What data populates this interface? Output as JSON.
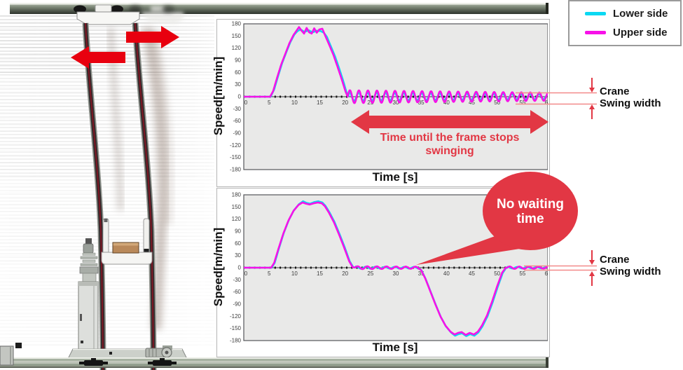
{
  "colors": {
    "machine_arrow_red": "#e8000f",
    "annotation_red": "#e23744",
    "annotation_line_red": "#f28a8a",
    "cyan": "#0ad8f2",
    "magenta": "#f711e8",
    "plot_bg": "#e9e9e8",
    "rail_green_dark": "#515a4e",
    "rail_green_light": "#9aa694"
  },
  "legend": {
    "items": [
      {
        "label": "Lower side",
        "swatch": "cyan"
      },
      {
        "label": "Upper side",
        "swatch": "magenta"
      }
    ]
  },
  "labels": {
    "swing_time": "Time until the frame stops swinging",
    "bubble_line1": "No waiting",
    "bubble_line2": "time",
    "crane": "Crane",
    "swing_width": "Swing width"
  },
  "chart_data": [
    {
      "type": "line",
      "title": "",
      "xlabel": "Time [s]",
      "ylabel": "Speed[m/min]",
      "xlim": [
        0,
        60
      ],
      "ylim": [
        -180,
        180
      ],
      "xticks": [
        0,
        5,
        10,
        15,
        20,
        25,
        30,
        35,
        40,
        45,
        50,
        55,
        60
      ],
      "yticks": [
        180,
        150,
        120,
        90,
        60,
        30,
        0,
        -30,
        -60,
        -90,
        -120,
        -150,
        -180
      ],
      "grid": false,
      "legend_position": "outside-top-right",
      "annotation": "Time until the frame stops swinging (oscillation continues from t=20s to t=60s, crane swing width about +/-15 m/min)",
      "series": [
        {
          "name": "Lower side",
          "color_key": "cyan",
          "profile": [
            [
              0,
              0
            ],
            [
              5.3,
              0
            ],
            [
              6,
              18
            ],
            [
              6.8,
              52
            ],
            [
              7.6,
              84
            ],
            [
              8.4,
              110
            ],
            [
              9.2,
              135
            ],
            [
              10,
              154
            ],
            [
              10.6,
              162
            ],
            [
              11.2,
              166
            ],
            [
              12,
              160
            ],
            [
              12.8,
              164
            ],
            [
              13.6,
              159
            ],
            [
              14.4,
              163
            ],
            [
              15.2,
              162
            ],
            [
              15.8,
              158
            ],
            [
              16.4,
              148
            ],
            [
              17.2,
              124
            ],
            [
              18,
              100
            ],
            [
              18.8,
              71
            ],
            [
              19.6,
              40
            ],
            [
              20.3,
              10
            ],
            [
              20.7,
              0
            ],
            [
              60,
              0
            ]
          ],
          "osc": [
            {
              "from": 20.7,
              "to": 60,
              "a0": 10,
              "a1": 6,
              "T": 1.78,
              "ph": 0.9
            }
          ]
        },
        {
          "name": "Upper side",
          "color_key": "magenta",
          "profile": [
            [
              0,
              0
            ],
            [
              5.2,
              0
            ],
            [
              5.8,
              14
            ],
            [
              6.6,
              48
            ],
            [
              7.4,
              80
            ],
            [
              8.2,
              106
            ],
            [
              9,
              132
            ],
            [
              9.8,
              152
            ],
            [
              10.4,
              163
            ],
            [
              10.9,
              172
            ],
            [
              11.4,
              163
            ],
            [
              11.9,
              156
            ],
            [
              12.4,
              170
            ],
            [
              12.9,
              159
            ],
            [
              13.4,
              156
            ],
            [
              13.9,
              169
            ],
            [
              14.4,
              158
            ],
            [
              14.9,
              166
            ],
            [
              15.5,
              168
            ],
            [
              16.1,
              150
            ],
            [
              16.9,
              127
            ],
            [
              17.7,
              103
            ],
            [
              18.5,
              74
            ],
            [
              19.3,
              44
            ],
            [
              20.1,
              12
            ],
            [
              20.5,
              0
            ],
            [
              60,
              0
            ]
          ],
          "osc": [
            {
              "from": 20.5,
              "to": 60,
              "a0": 16,
              "a1": 10,
              "T": 1.78,
              "ph": 0
            }
          ]
        }
      ]
    },
    {
      "type": "line",
      "title": "",
      "xlabel": "Time [s]",
      "ylabel": "Speed[m/min]",
      "xlim": [
        0,
        60
      ],
      "ylim": [
        -180,
        180
      ],
      "xticks": [
        0,
        5,
        10,
        15,
        20,
        25,
        30,
        35,
        40,
        45,
        50,
        55,
        60
      ],
      "yticks": [
        180,
        150,
        120,
        90,
        60,
        30,
        0,
        -30,
        -60,
        -90,
        -120,
        -150,
        -180
      ],
      "grid": false,
      "legend_position": "outside-top-right",
      "annotation": "No waiting time (reverse travel starts at t=35s immediately, swing width nearly zero)",
      "series": [
        {
          "name": "Lower side",
          "color_key": "cyan",
          "profile": [
            [
              0,
              0
            ],
            [
              5.5,
              0
            ],
            [
              6.1,
              12
            ],
            [
              6.9,
              46
            ],
            [
              7.9,
              86
            ],
            [
              8.9,
              118
            ],
            [
              9.9,
              142
            ],
            [
              10.9,
              157
            ],
            [
              11.7,
              164
            ],
            [
              12.4,
              160
            ],
            [
              13.1,
              158
            ],
            [
              13.9,
              162
            ],
            [
              14.7,
              164
            ],
            [
              15.5,
              161
            ],
            [
              16.1,
              153
            ],
            [
              16.9,
              137
            ],
            [
              17.9,
              113
            ],
            [
              18.9,
              83
            ],
            [
              19.9,
              51
            ],
            [
              20.9,
              16
            ],
            [
              21.6,
              1
            ],
            [
              22.6,
              0
            ],
            [
              34.4,
              0
            ],
            [
              35.1,
              -7
            ],
            [
              35.9,
              -28
            ],
            [
              36.9,
              -60
            ],
            [
              37.9,
              -92
            ],
            [
              38.9,
              -122
            ],
            [
              39.9,
              -145
            ],
            [
              40.9,
              -160
            ],
            [
              41.7,
              -168
            ],
            [
              42.4,
              -164
            ],
            [
              43.1,
              -162
            ],
            [
              43.9,
              -169
            ],
            [
              44.7,
              -164
            ],
            [
              45.5,
              -168
            ],
            [
              46.3,
              -160
            ],
            [
              47.1,
              -145
            ],
            [
              48.1,
              -120
            ],
            [
              49.1,
              -86
            ],
            [
              50.1,
              -48
            ],
            [
              51.1,
              -13
            ],
            [
              51.8,
              0
            ],
            [
              60,
              0
            ]
          ],
          "osc": [
            {
              "from": 22.1,
              "to": 34.5,
              "a0": 2.5,
              "a1": 2,
              "T": 1.9,
              "ph": 1.2
            },
            {
              "from": 52,
              "to": 60,
              "a0": 2,
              "a1": 1.5,
              "T": 1.9,
              "ph": 1.2
            }
          ]
        },
        {
          "name": "Upper side",
          "color_key": "magenta",
          "profile": [
            [
              0,
              0
            ],
            [
              5.4,
              0
            ],
            [
              6,
              12
            ],
            [
              6.8,
              45
            ],
            [
              7.8,
              84
            ],
            [
              8.8,
              116
            ],
            [
              9.8,
              140
            ],
            [
              10.8,
              155
            ],
            [
              11.6,
              161
            ],
            [
              12.3,
              158
            ],
            [
              13,
              156
            ],
            [
              13.8,
              159
            ],
            [
              14.6,
              161
            ],
            [
              15.4,
              159
            ],
            [
              16,
              152
            ],
            [
              16.8,
              136
            ],
            [
              17.8,
              112
            ],
            [
              18.8,
              82
            ],
            [
              19.8,
              50
            ],
            [
              20.8,
              16
            ],
            [
              21.5,
              1
            ],
            [
              22.5,
              0
            ],
            [
              34.3,
              0
            ],
            [
              35,
              -6
            ],
            [
              35.8,
              -26
            ],
            [
              36.8,
              -58
            ],
            [
              37.8,
              -90
            ],
            [
              38.8,
              -120
            ],
            [
              39.8,
              -143
            ],
            [
              40.8,
              -158
            ],
            [
              41.6,
              -165
            ],
            [
              42.3,
              -161
            ],
            [
              43,
              -159
            ],
            [
              43.8,
              -166
            ],
            [
              44.6,
              -161
            ],
            [
              45.4,
              -165
            ],
            [
              46.2,
              -158
            ],
            [
              47,
              -143
            ],
            [
              48,
              -118
            ],
            [
              49,
              -84
            ],
            [
              50,
              -46
            ],
            [
              51,
              -12
            ],
            [
              51.7,
              0
            ],
            [
              60,
              0
            ]
          ],
          "osc": [
            {
              "from": 22,
              "to": 34.5,
              "a0": 3.5,
              "a1": 2.5,
              "T": 1.9,
              "ph": 0
            },
            {
              "from": 52,
              "to": 60,
              "a0": 3,
              "a1": 2,
              "T": 1.9,
              "ph": 0
            }
          ]
        }
      ]
    }
  ]
}
